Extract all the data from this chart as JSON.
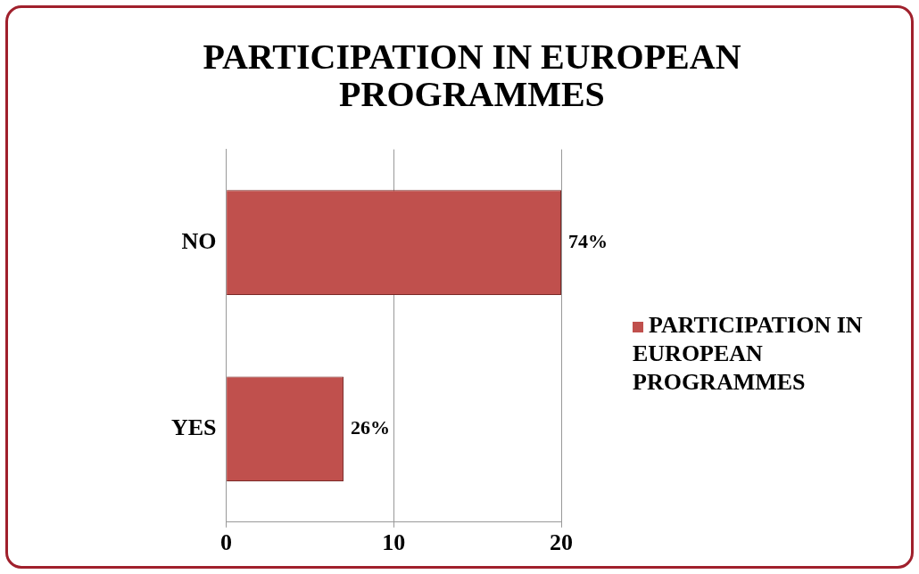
{
  "chart_data": {
    "type": "bar",
    "orientation": "horizontal",
    "title": "PARTICIPATION IN EUROPEAN PROGRAMMES",
    "categories": [
      "NO",
      "YES"
    ],
    "series": [
      {
        "name": "PARTICIPATION IN EUROPEAN PROGRAMMES",
        "color": "#c0504d",
        "values": [
          20,
          7
        ]
      }
    ],
    "annotations": [
      {
        "text": "74%",
        "x": 20,
        "y": "NO"
      },
      {
        "text": "26%",
        "x": 7,
        "y": "YES"
      }
    ],
    "xlim": [
      0,
      20
    ],
    "xticks": [
      0,
      10,
      20
    ],
    "grid": "x",
    "legend": "right"
  }
}
